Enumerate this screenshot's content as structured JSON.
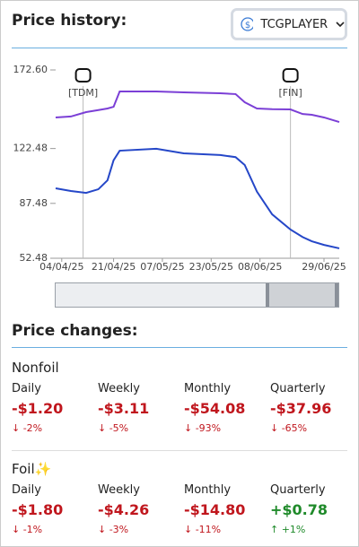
{
  "header": {
    "title": "Price history:",
    "source": "TCGPLAYER"
  },
  "chart_data": {
    "type": "line",
    "x": [
      "02/04/25",
      "07/04/25",
      "12/04/25",
      "16/04/25",
      "19/04/25",
      "21/04/25",
      "23/04/25",
      "05/05/25",
      "14/05/25",
      "26/05/25",
      "31/05/25",
      "03/06/25",
      "07/06/25",
      "12/06/25",
      "18/06/25",
      "22/06/25",
      "25/06/25",
      "29/06/25",
      "04/07/25"
    ],
    "series": [
      {
        "color": "#7b3fd6",
        "values": [
          142.3,
          142.9,
          145.7,
          147,
          148,
          149.1,
          158.9,
          158.9,
          158.3,
          157.7,
          157.2,
          152,
          148,
          147.6,
          147.4,
          144.5,
          144,
          142.3,
          139.4
        ]
      },
      {
        "color": "#2547c8",
        "values": [
          97.1,
          95.4,
          94.2,
          96.5,
          102.2,
          115,
          121.1,
          122.3,
          119.4,
          118.3,
          117,
          112,
          95,
          80.5,
          70.8,
          66,
          63.3,
          61,
          58.8
        ]
      }
    ],
    "xlim": [
      "02/04/25",
      "04/07/25"
    ],
    "xticks": [
      "04/04/25",
      "21/04/25",
      "07/05/25",
      "23/05/25",
      "08/06/25",
      "29/06/25"
    ],
    "ylim": [
      52.48,
      172.6
    ],
    "yticks": [
      52.48,
      87.48,
      122.48,
      {
        "value": 172.6,
        "label": "172.60"
      }
    ],
    "annotations": [
      {
        "x": "11/04/25",
        "label": "[TDM]"
      },
      {
        "x": "18/06/25",
        "label": "[FIN]"
      }
    ]
  },
  "price_changes": {
    "title": "Price changes:",
    "sections": [
      {
        "name": "Nonfoil",
        "items": [
          {
            "label": "Daily",
            "value": "-$1.20",
            "change": "↓ -2%"
          },
          {
            "label": "Weekly",
            "value": "-$3.11",
            "change": "↓ -5%"
          },
          {
            "label": "Monthly",
            "value": "-$54.08",
            "change": "↓ -93%"
          },
          {
            "label": "Quarterly",
            "value": "-$37.96",
            "change": "↓ -65%"
          }
        ]
      },
      {
        "name": "Foil✨",
        "items": [
          {
            "label": "Daily",
            "value": "-$1.80",
            "change": "↓ -1%"
          },
          {
            "label": "Weekly",
            "value": "-$4.26",
            "change": "↓ -3%"
          },
          {
            "label": "Monthly",
            "value": "-$14.80",
            "change": "↓ -11%"
          },
          {
            "label": "Quarterly",
            "value": "+$0.78",
            "change": "↑ +1%"
          }
        ]
      }
    ]
  }
}
